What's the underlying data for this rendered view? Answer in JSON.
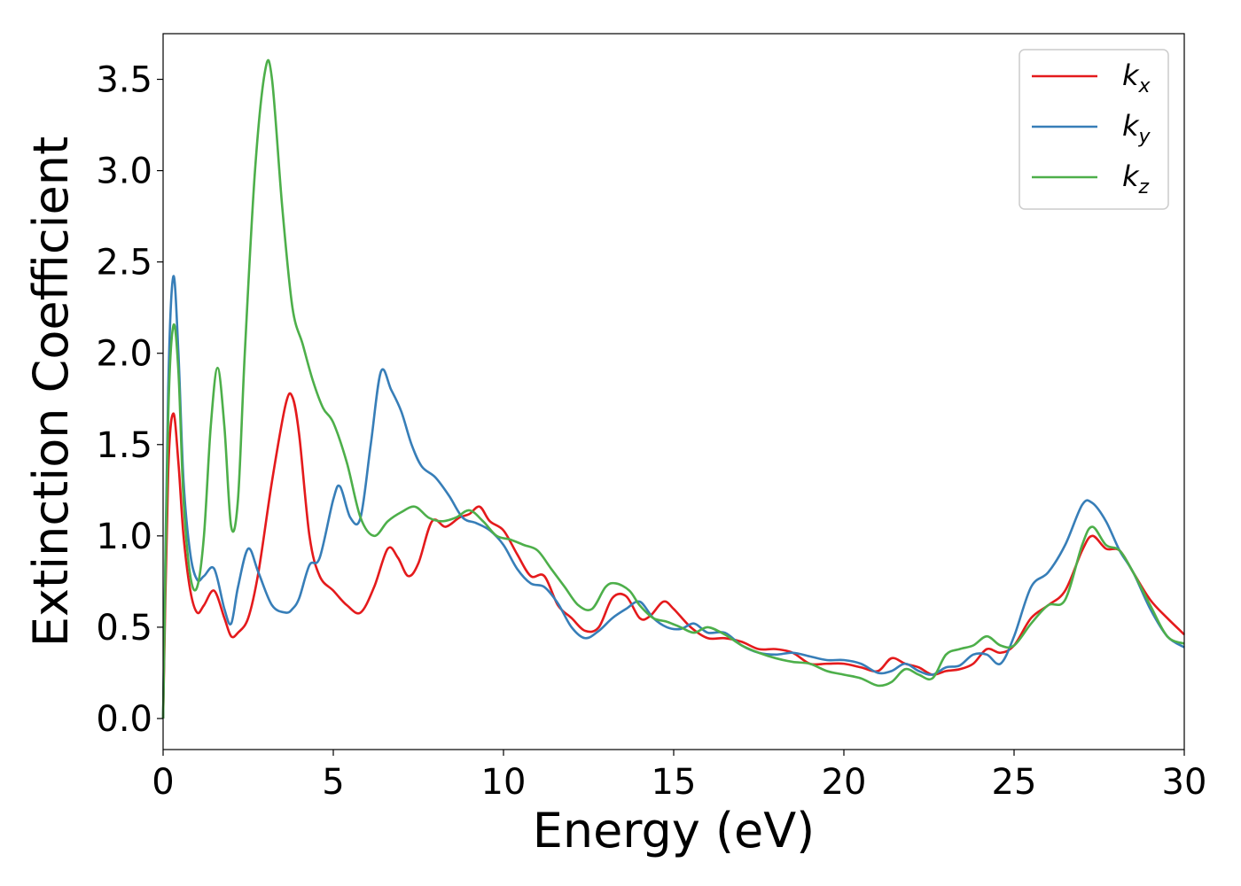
{
  "chart_data": {
    "type": "line",
    "xlabel": "Energy (eV)",
    "ylabel": "Extinction Coefficient",
    "xlim": [
      0,
      30
    ],
    "ylim": [
      -0.17,
      3.75
    ],
    "xticks": [
      0,
      5,
      10,
      15,
      20,
      25,
      30
    ],
    "xtick_labels": [
      "0",
      "5",
      "10",
      "15",
      "20",
      "25",
      "30"
    ],
    "yticks": [
      0.0,
      0.5,
      1.0,
      1.5,
      2.0,
      2.5,
      3.0,
      3.5
    ],
    "ytick_labels": [
      "0.0",
      "0.5",
      "1.0",
      "1.5",
      "2.0",
      "2.5",
      "3.0",
      "3.5"
    ],
    "grid": false,
    "legend_position": "top-right",
    "series": [
      {
        "name": "k_x",
        "legend_main": "k",
        "legend_sub": "x",
        "color": "#e41a1c",
        "x": [
          0,
          0.15,
          0.3,
          0.45,
          0.6,
          0.8,
          1.0,
          1.2,
          1.5,
          1.8,
          2.0,
          2.2,
          2.5,
          2.8,
          3.2,
          3.6,
          3.8,
          4.0,
          4.3,
          4.6,
          5.0,
          5.4,
          5.8,
          6.2,
          6.6,
          6.9,
          7.2,
          7.5,
          7.9,
          8.3,
          8.7,
          9.0,
          9.3,
          9.6,
          10.0,
          10.4,
          10.8,
          11.2,
          11.6,
          12.0,
          12.4,
          12.8,
          13.2,
          13.6,
          14.0,
          14.3,
          14.7,
          15.0,
          15.5,
          16.0,
          16.5,
          17.0,
          17.5,
          18.0,
          18.5,
          19.0,
          19.5,
          20.0,
          20.5,
          21.0,
          21.4,
          21.8,
          22.2,
          22.6,
          23.0,
          23.4,
          23.8,
          24.2,
          24.6,
          25.0,
          25.5,
          26.0,
          26.5,
          27.0,
          27.3,
          27.7,
          28.1,
          28.5,
          29.0,
          29.5,
          30.0
        ],
        "y": [
          0.0,
          1.35,
          1.67,
          1.4,
          1.0,
          0.7,
          0.58,
          0.62,
          0.7,
          0.55,
          0.45,
          0.47,
          0.55,
          0.8,
          1.3,
          1.72,
          1.76,
          1.55,
          1.0,
          0.78,
          0.7,
          0.62,
          0.58,
          0.72,
          0.93,
          0.88,
          0.78,
          0.85,
          1.08,
          1.05,
          1.1,
          1.12,
          1.16,
          1.08,
          1.03,
          0.9,
          0.78,
          0.78,
          0.62,
          0.55,
          0.48,
          0.5,
          0.66,
          0.67,
          0.55,
          0.56,
          0.64,
          0.6,
          0.5,
          0.44,
          0.44,
          0.42,
          0.38,
          0.38,
          0.36,
          0.3,
          0.3,
          0.3,
          0.28,
          0.26,
          0.33,
          0.3,
          0.28,
          0.24,
          0.26,
          0.27,
          0.3,
          0.38,
          0.36,
          0.4,
          0.55,
          0.62,
          0.7,
          0.92,
          1.0,
          0.93,
          0.92,
          0.8,
          0.65,
          0.55,
          0.46
        ]
      },
      {
        "name": "k_y",
        "legend_main": "k",
        "legend_sub": "y",
        "color": "#377eb8",
        "x": [
          0,
          0.15,
          0.3,
          0.45,
          0.6,
          0.8,
          1.0,
          1.2,
          1.5,
          1.8,
          2.0,
          2.2,
          2.5,
          2.8,
          3.2,
          3.6,
          3.8,
          4.0,
          4.3,
          4.6,
          5.0,
          5.2,
          5.5,
          5.8,
          6.1,
          6.4,
          6.7,
          7.0,
          7.3,
          7.6,
          8.0,
          8.4,
          8.8,
          9.2,
          9.6,
          10.0,
          10.4,
          10.8,
          11.2,
          11.6,
          12.0,
          12.4,
          12.8,
          13.2,
          13.6,
          14.0,
          14.4,
          14.8,
          15.2,
          15.6,
          16.0,
          16.5,
          17.0,
          17.5,
          18.0,
          18.5,
          19.0,
          19.5,
          20.0,
          20.5,
          21.0,
          21.4,
          21.8,
          22.2,
          22.6,
          23.0,
          23.4,
          23.8,
          24.2,
          24.6,
          25.0,
          25.5,
          26.0,
          26.5,
          27.0,
          27.3,
          27.7,
          28.1,
          28.5,
          29.0,
          29.5,
          30.0
        ],
        "y": [
          0.0,
          1.8,
          2.42,
          2.0,
          1.3,
          0.9,
          0.76,
          0.78,
          0.82,
          0.6,
          0.52,
          0.72,
          0.93,
          0.8,
          0.62,
          0.58,
          0.6,
          0.66,
          0.84,
          0.88,
          1.2,
          1.27,
          1.1,
          1.1,
          1.5,
          1.9,
          1.8,
          1.68,
          1.5,
          1.38,
          1.32,
          1.22,
          1.1,
          1.07,
          1.03,
          0.95,
          0.82,
          0.74,
          0.72,
          0.63,
          0.5,
          0.44,
          0.48,
          0.55,
          0.6,
          0.64,
          0.55,
          0.5,
          0.49,
          0.52,
          0.47,
          0.47,
          0.4,
          0.36,
          0.35,
          0.36,
          0.34,
          0.32,
          0.32,
          0.3,
          0.25,
          0.26,
          0.3,
          0.26,
          0.24,
          0.28,
          0.29,
          0.35,
          0.35,
          0.3,
          0.45,
          0.72,
          0.8,
          0.95,
          1.17,
          1.18,
          1.08,
          0.92,
          0.8,
          0.6,
          0.45,
          0.39
        ]
      },
      {
        "name": "k_z",
        "legend_main": "k",
        "legend_sub": "z",
        "color": "#4daf4a",
        "x": [
          0,
          0.15,
          0.3,
          0.45,
          0.6,
          0.8,
          1.0,
          1.2,
          1.4,
          1.6,
          1.8,
          2.0,
          2.2,
          2.4,
          2.7,
          3.0,
          3.2,
          3.5,
          3.8,
          4.1,
          4.4,
          4.7,
          5.0,
          5.4,
          5.8,
          6.2,
          6.6,
          7.0,
          7.4,
          7.8,
          8.2,
          8.6,
          9.0,
          9.4,
          9.8,
          10.2,
          10.6,
          11.0,
          11.4,
          11.8,
          12.2,
          12.6,
          13.0,
          13.3,
          13.7,
          14.0,
          14.4,
          14.8,
          15.2,
          15.6,
          16.0,
          16.5,
          17.0,
          17.5,
          18.0,
          18.5,
          19.0,
          19.5,
          20.0,
          20.5,
          21.0,
          21.4,
          21.8,
          22.2,
          22.6,
          23.0,
          23.4,
          23.8,
          24.2,
          24.6,
          25.0,
          25.5,
          26.0,
          26.5,
          27.0,
          27.3,
          27.7,
          28.1,
          28.5,
          29.0,
          29.5,
          30.0
        ],
        "y": [
          0.0,
          1.65,
          2.15,
          1.9,
          1.2,
          0.78,
          0.72,
          1.0,
          1.6,
          1.92,
          1.6,
          1.05,
          1.2,
          2.0,
          3.0,
          3.55,
          3.5,
          2.8,
          2.25,
          2.05,
          1.85,
          1.7,
          1.62,
          1.4,
          1.1,
          1.0,
          1.08,
          1.13,
          1.16,
          1.1,
          1.08,
          1.1,
          1.14,
          1.08,
          1.0,
          0.98,
          0.95,
          0.92,
          0.82,
          0.72,
          0.62,
          0.6,
          0.72,
          0.74,
          0.7,
          0.62,
          0.55,
          0.53,
          0.5,
          0.47,
          0.5,
          0.46,
          0.4,
          0.36,
          0.33,
          0.31,
          0.3,
          0.26,
          0.24,
          0.22,
          0.18,
          0.2,
          0.27,
          0.24,
          0.22,
          0.35,
          0.38,
          0.4,
          0.45,
          0.4,
          0.4,
          0.52,
          0.62,
          0.65,
          0.95,
          1.05,
          0.95,
          0.92,
          0.8,
          0.62,
          0.45,
          0.41
        ]
      }
    ]
  }
}
